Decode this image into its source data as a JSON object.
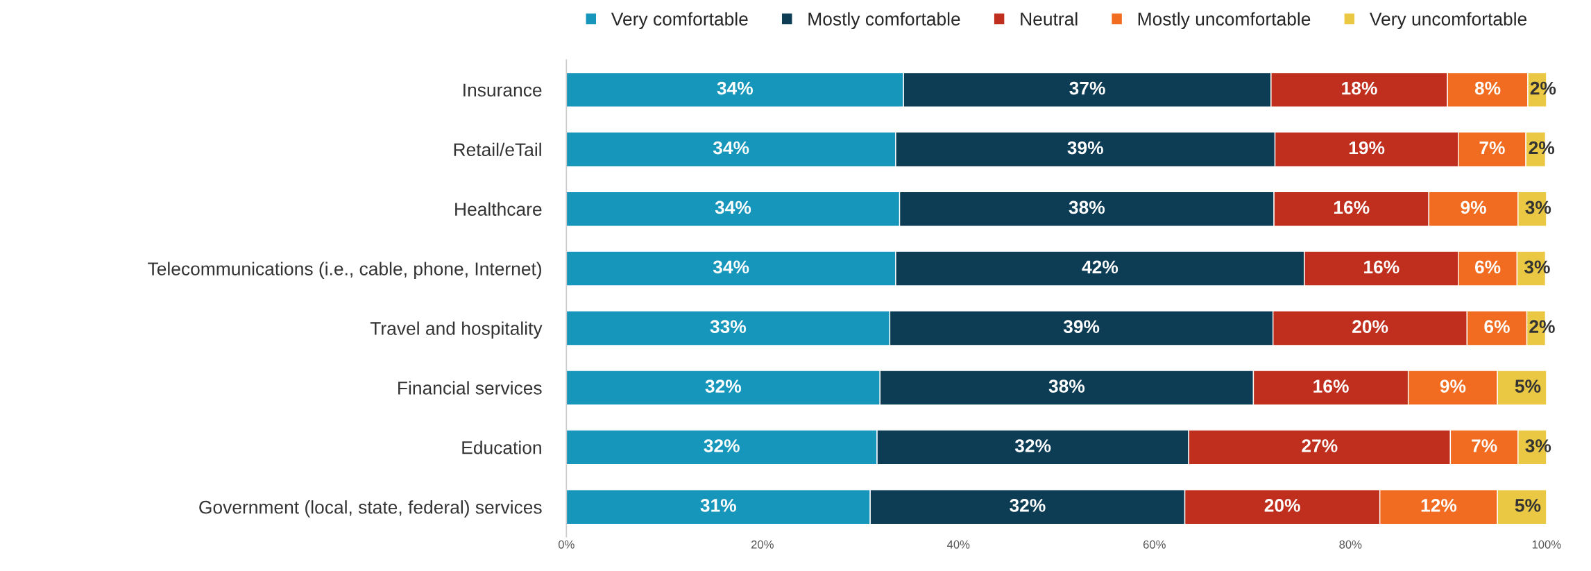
{
  "chart_data": {
    "type": "bar",
    "orientation": "horizontal",
    "stacked": true,
    "legend": "top",
    "grid": false,
    "categories": [
      "Insurance",
      "Retail/eTail",
      "Healthcare",
      "Telecommunications (i.e., cable, phone, Internet)",
      "Travel and hospitality",
      "Financial services",
      "Education",
      "Government (local, state, federal) services"
    ],
    "xlim": [
      0,
      100
    ],
    "xticks": [
      {
        "value": 0,
        "label": "0%"
      },
      {
        "value": 20,
        "label": "20%"
      },
      {
        "value": 40,
        "label": "40%"
      },
      {
        "value": 60,
        "label": "60%"
      },
      {
        "value": 80,
        "label": "80%"
      },
      {
        "value": 100,
        "label": "100%"
      }
    ],
    "series": [
      {
        "name": "Very comfortable",
        "color": "#1696bb",
        "values": [
          34.4,
          33.6,
          34.0,
          33.6,
          33.0,
          32.0,
          31.7,
          31.0
        ],
        "value_labels": [
          "34%",
          "34%",
          "34%",
          "34%",
          "33%",
          "32%",
          "32%",
          "31%"
        ]
      },
      {
        "name": "Mostly comfortable",
        "color": "#0d3c55",
        "values": [
          37.5,
          38.7,
          38.2,
          41.7,
          39.1,
          38.1,
          31.8,
          32.1
        ],
        "value_labels": [
          "37%",
          "39%",
          "38%",
          "42%",
          "39%",
          "38%",
          "32%",
          "32%"
        ]
      },
      {
        "name": "Neutral",
        "color": "#c02e1d",
        "values": [
          18.0,
          18.7,
          15.8,
          15.7,
          19.8,
          15.8,
          26.7,
          19.9
        ],
        "value_labels": [
          "18%",
          "19%",
          "16%",
          "16%",
          "20%",
          "16%",
          "27%",
          "20%"
        ]
      },
      {
        "name": "Mostly uncomfortable",
        "color": "#f16c20",
        "values": [
          8.2,
          6.9,
          9.1,
          6.0,
          6.1,
          9.1,
          6.9,
          12.0
        ],
        "value_labels": [
          "8%",
          "7%",
          "9%",
          "6%",
          "6%",
          "9%",
          "7%",
          "12%"
        ]
      },
      {
        "name": "Very uncomfortable",
        "color": "#ebc844",
        "values": [
          1.9,
          2.0,
          2.9,
          2.9,
          1.9,
          5.0,
          2.9,
          5.0
        ],
        "value_labels": [
          "2%",
          "2%",
          "3%",
          "3%",
          "2%",
          "5%",
          "3%",
          "5%"
        ]
      }
    ]
  }
}
